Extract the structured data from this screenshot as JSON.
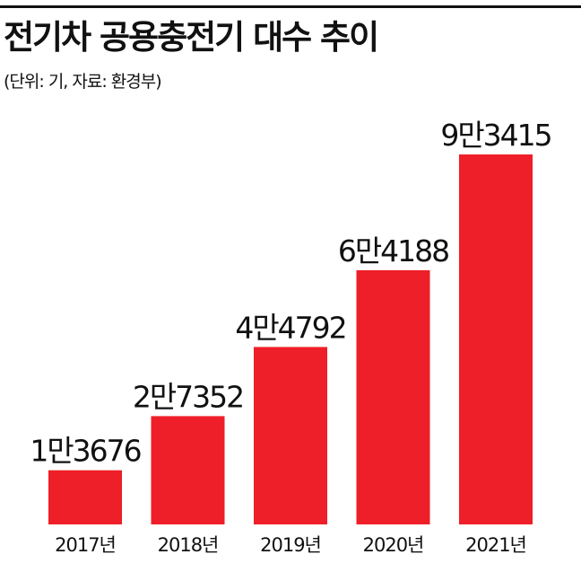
{
  "title": "전기차 공용충전기 대수 추이",
  "subtitle": "(단위: 기, 자료: 환경부)",
  "colors": {
    "bar": "#ee1f28",
    "text": "#111111",
    "rule": "#111111"
  },
  "chart_data": {
    "type": "bar",
    "title": "전기차 공용충전기 대수 추이",
    "subtitle": "(단위: 기, 자료: 환경부)",
    "categories": [
      "2017년",
      "2018년",
      "2019년",
      "2020년",
      "2021년"
    ],
    "values": [
      13676,
      27352,
      44792,
      64188,
      93415
    ],
    "value_labels": [
      "1만3676",
      "2만7352",
      "4만4792",
      "6만4188",
      "9만3415"
    ],
    "xlabel": "",
    "ylabel": "",
    "ylim": [
      0,
      93415
    ],
    "grid": false,
    "legend": "none"
  }
}
